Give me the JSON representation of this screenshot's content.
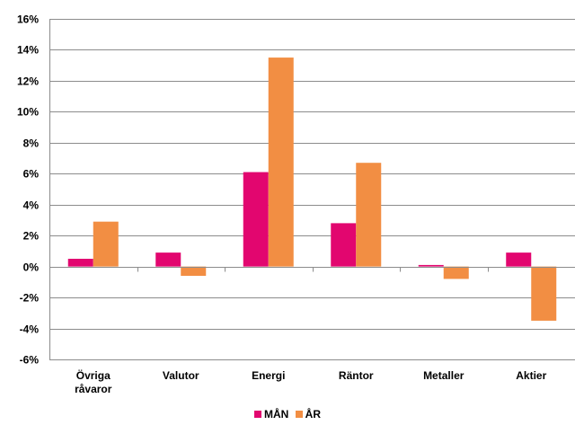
{
  "chart_data": {
    "type": "bar",
    "categories": [
      [
        "Övriga",
        "råvaror"
      ],
      [
        "Valutor"
      ],
      [
        "Energi"
      ],
      [
        "Räntor"
      ],
      [
        "Metaller"
      ],
      [
        "Aktier"
      ]
    ],
    "series": [
      {
        "name": "MÅN",
        "color": "#e2066f",
        "values": [
          0.5,
          0.9,
          6.1,
          2.8,
          0.1,
          0.9
        ]
      },
      {
        "name": "ÅR",
        "color": "#f28e43",
        "values": [
          2.9,
          -0.6,
          13.5,
          6.7,
          -0.8,
          -3.5
        ]
      }
    ],
    "ylim": [
      -6,
      16
    ],
    "yticks": [
      "16%",
      "14%",
      "12%",
      "10%",
      "8%",
      "6%",
      "4%",
      "2%",
      "0%",
      "-2%",
      "-4%",
      "-6%"
    ],
    "ytick_values": [
      16,
      14,
      12,
      10,
      8,
      6,
      4,
      2,
      0,
      -2,
      -4,
      -6
    ],
    "grid": true,
    "legend_position": "bottom"
  }
}
